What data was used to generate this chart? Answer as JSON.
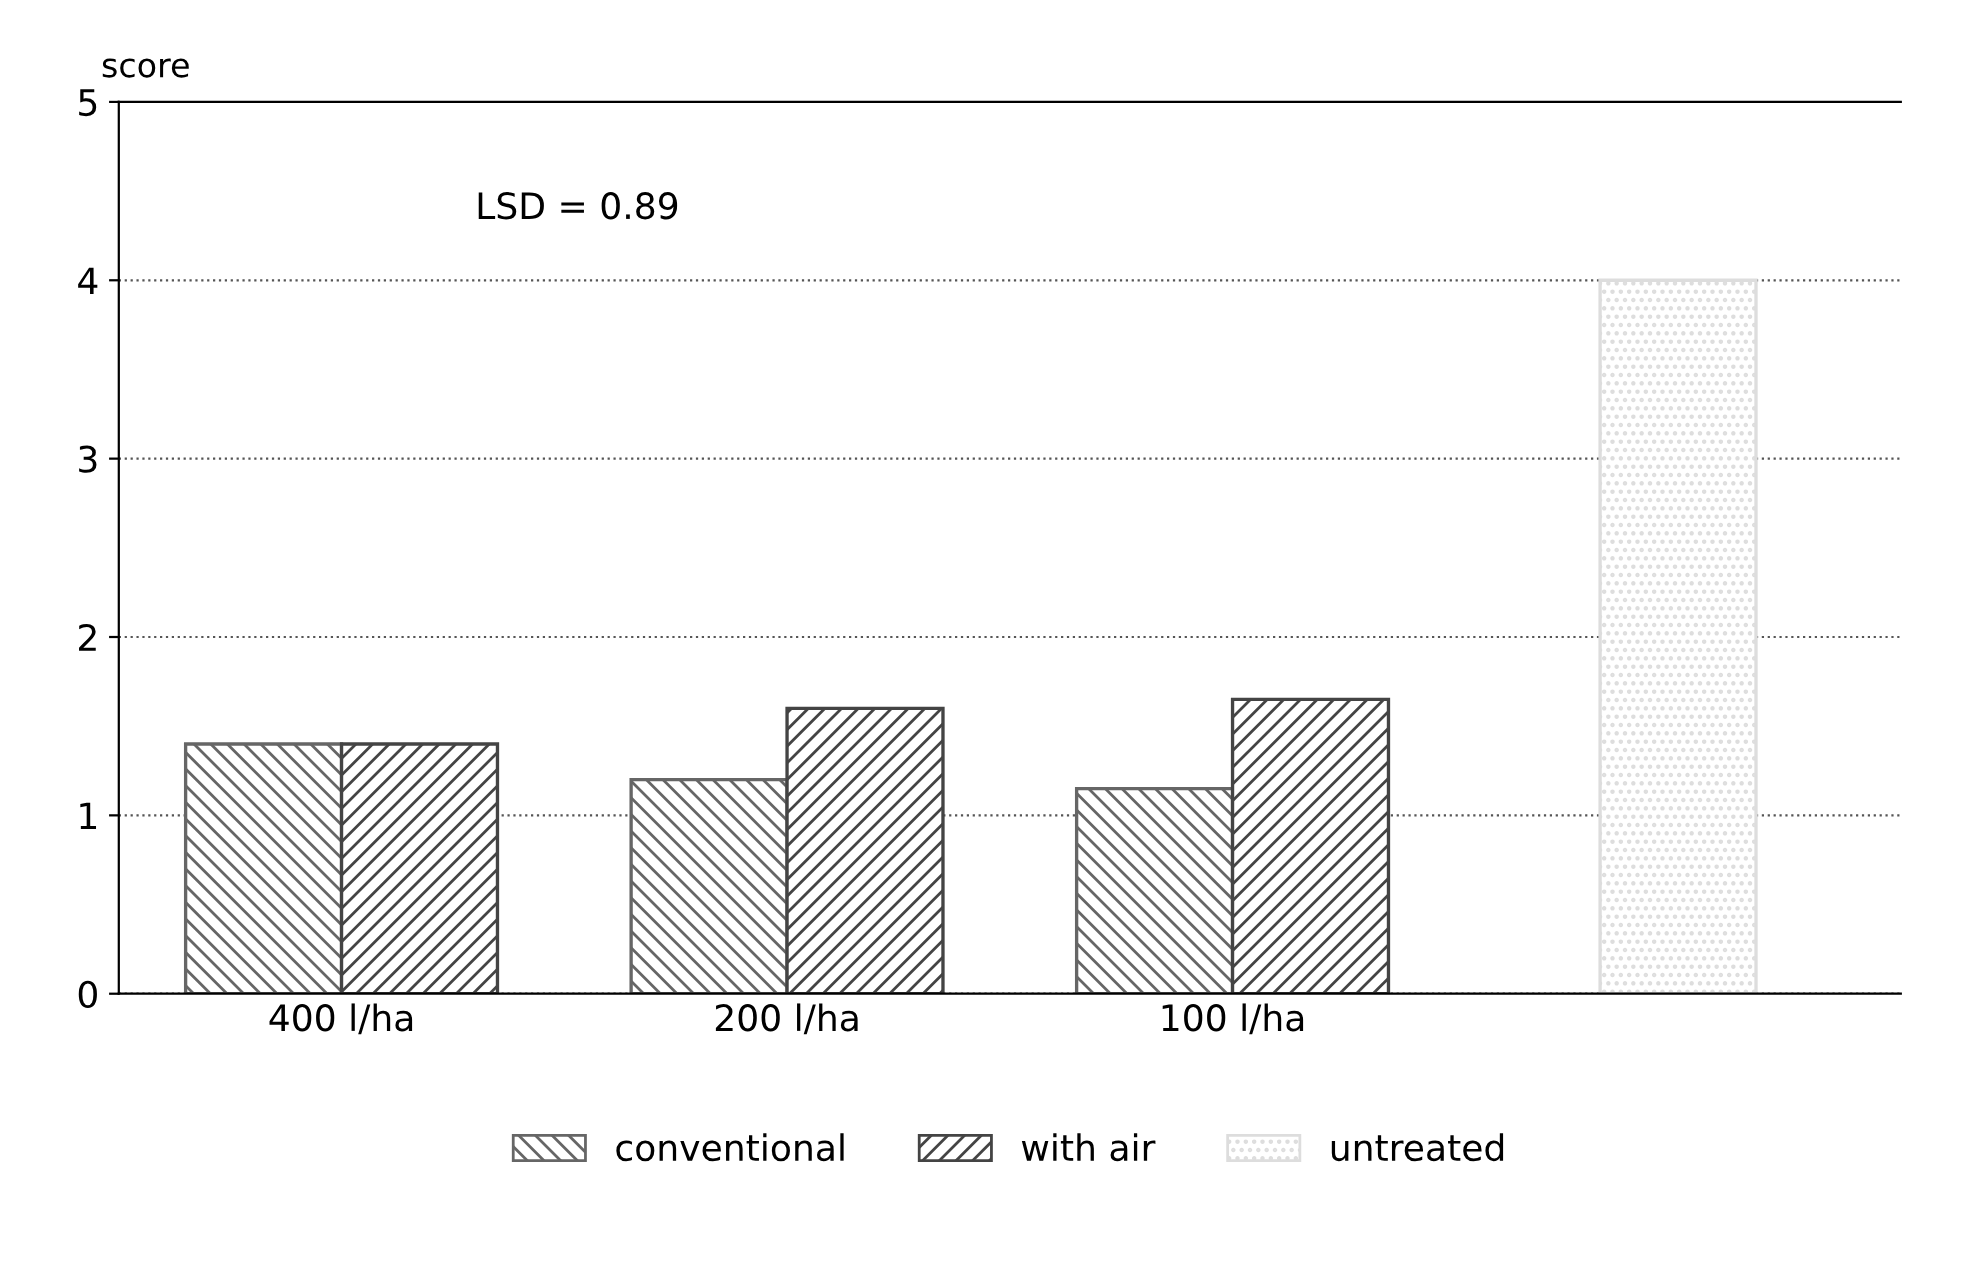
{
  "chart_data": {
    "type": "bar",
    "ylabel": "score",
    "categories": [
      "400 l/ha",
      "200 l/ha",
      "100 l/ha",
      null
    ],
    "series": [
      {
        "name": "conventional",
        "color": "#666666",
        "values": [
          1.4,
          1.2,
          1.15,
          null
        ]
      },
      {
        "name": "with air",
        "color": "#444444",
        "values": [
          1.4,
          1.6,
          1.65,
          null
        ]
      },
      {
        "name": "untreated",
        "color": "#dddddd",
        "values": [
          null,
          null,
          null,
          4.0
        ]
      }
    ],
    "ylim": [
      0,
      5
    ],
    "yticks": [
      0,
      1,
      2,
      3,
      4,
      5
    ],
    "grid": "y",
    "legend": "bottom",
    "annotations": [
      "LSD = 0.89"
    ]
  }
}
